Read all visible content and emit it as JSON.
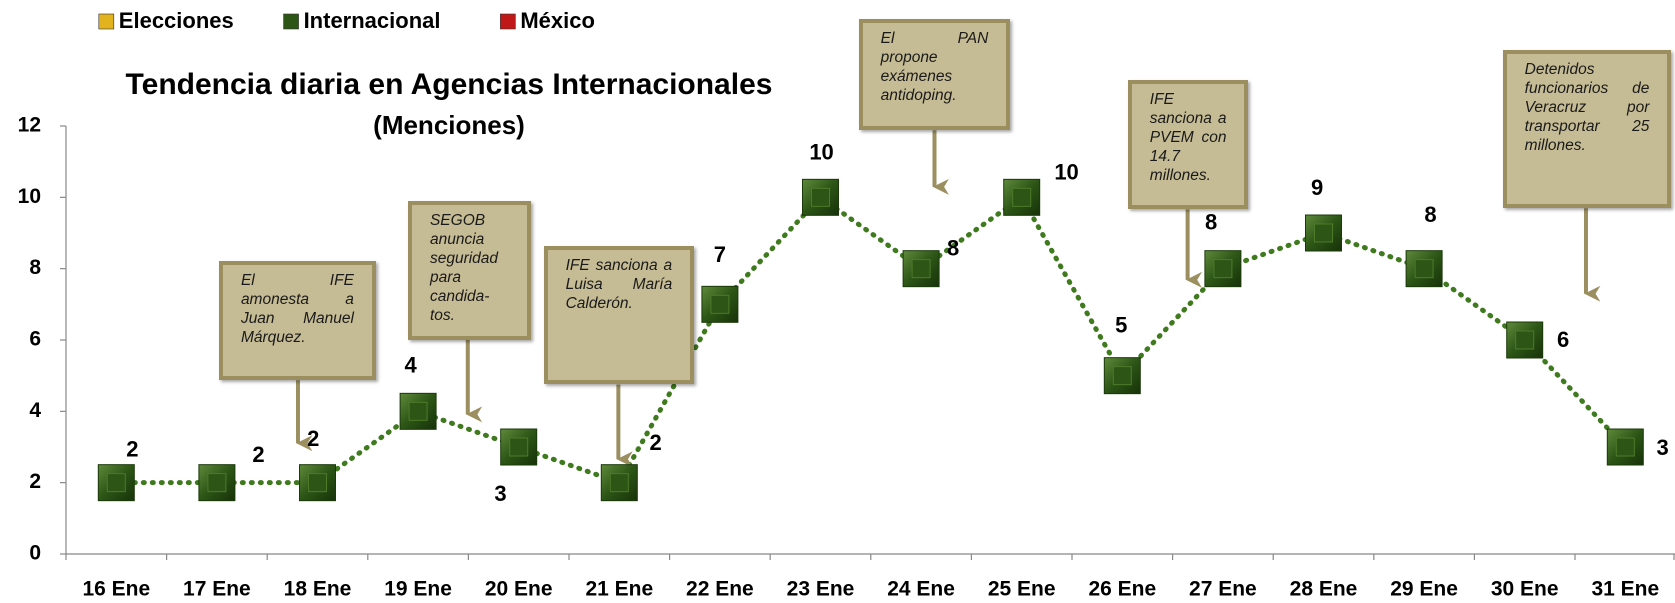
{
  "chart_data": {
    "type": "line",
    "title": "Tendencia diaria en Agencias Internacionales",
    "subtitle": "(Menciones)",
    "legend": [
      {
        "name": "Elecciones",
        "color": "#e2b21f"
      },
      {
        "name": "Internacional",
        "color": "#2c5516"
      },
      {
        "name": "México",
        "color": "#c01818"
      }
    ],
    "categories": [
      "16 Ene",
      "17 Ene",
      "18 Ene",
      "19 Ene",
      "20 Ene",
      "21 Ene",
      "22 Ene",
      "23 Ene",
      "24 Ene",
      "25 Ene",
      "26 Ene",
      "27 Ene",
      "28 Ene",
      "29 Ene",
      "30 Ene",
      "31 Ene"
    ],
    "values": [
      2,
      2,
      2,
      4,
      3,
      2,
      7,
      10,
      8,
      10,
      5,
      8,
      9,
      8,
      6,
      3
    ],
    "color": "#3f7a1f",
    "ylim": [
      0,
      12
    ],
    "yticks": [
      0,
      2,
      4,
      6,
      8,
      10,
      12
    ],
    "annotations": [
      "El IFE amonesta a Juan Manuel Márquez.",
      "SEGOB anuncia seguridad para candida-tos.",
      "IFE sanciona a Luisa María Calderón.",
      "El PAN propone exámenes antidoping.",
      "IFE sanciona a PVEM con 14.7 millones.",
      "Detenidos funcionarios de Veracruz por transportar 25 millones."
    ]
  }
}
